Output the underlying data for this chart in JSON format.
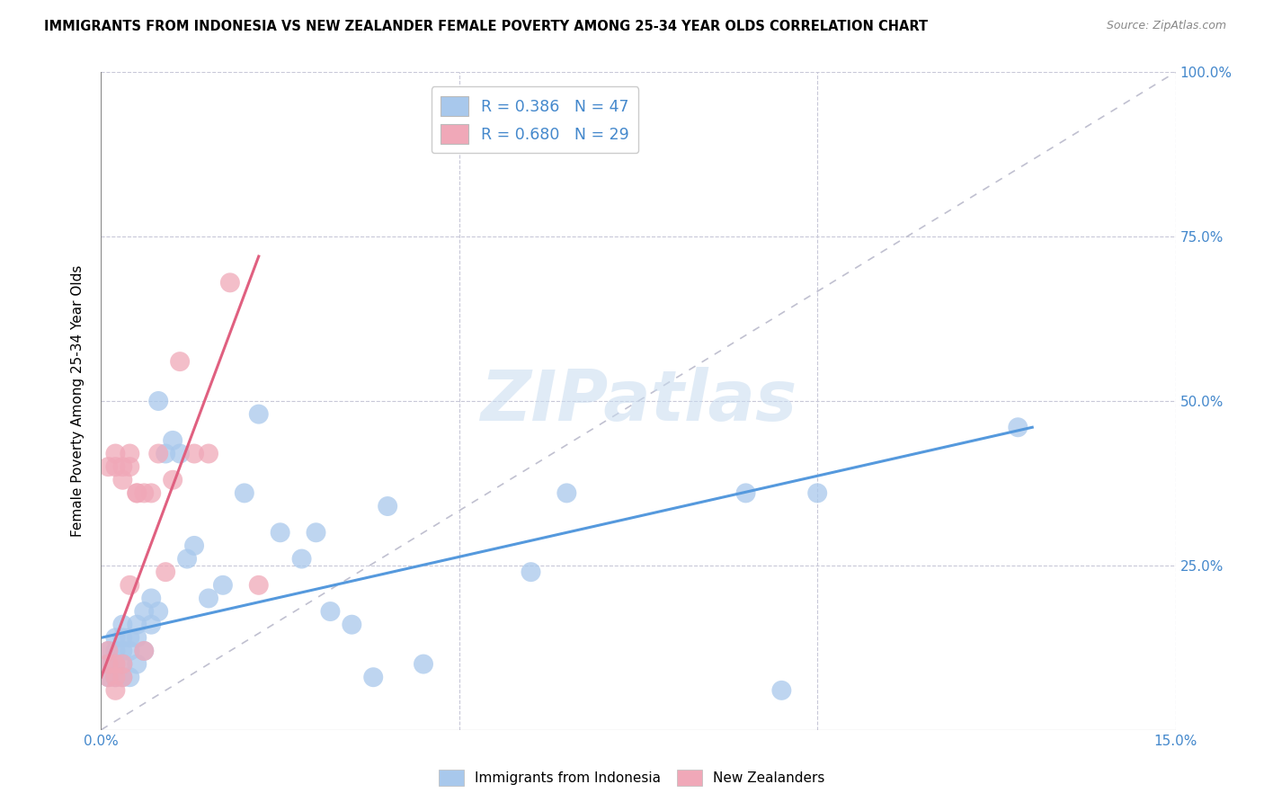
{
  "title": "IMMIGRANTS FROM INDONESIA VS NEW ZEALANDER FEMALE POVERTY AMONG 25-34 YEAR OLDS CORRELATION CHART",
  "source": "Source: ZipAtlas.com",
  "ylabel": "Female Poverty Among 25-34 Year Olds",
  "x_min": 0.0,
  "x_max": 0.15,
  "y_min": 0.0,
  "y_max": 1.0,
  "blue_color": "#A8C8EC",
  "pink_color": "#F0A8B8",
  "blue_line_color": "#5599DD",
  "pink_line_color": "#E06080",
  "diagonal_color": "#C0C0D0",
  "watermark_text": "ZIPatlas",
  "blue_scatter_x": [
    0.001,
    0.001,
    0.001,
    0.002,
    0.002,
    0.002,
    0.002,
    0.003,
    0.003,
    0.003,
    0.003,
    0.003,
    0.004,
    0.004,
    0.004,
    0.005,
    0.005,
    0.005,
    0.006,
    0.006,
    0.007,
    0.007,
    0.008,
    0.008,
    0.009,
    0.01,
    0.011,
    0.012,
    0.013,
    0.015,
    0.017,
    0.02,
    0.022,
    0.025,
    0.028,
    0.03,
    0.032,
    0.035,
    0.038,
    0.04,
    0.045,
    0.06,
    0.065,
    0.09,
    0.095,
    0.1,
    0.128
  ],
  "blue_scatter_y": [
    0.12,
    0.1,
    0.08,
    0.14,
    0.12,
    0.1,
    0.08,
    0.16,
    0.14,
    0.12,
    0.1,
    0.08,
    0.14,
    0.12,
    0.08,
    0.16,
    0.14,
    0.1,
    0.18,
    0.12,
    0.2,
    0.16,
    0.5,
    0.18,
    0.42,
    0.44,
    0.42,
    0.26,
    0.28,
    0.2,
    0.22,
    0.36,
    0.48,
    0.3,
    0.26,
    0.3,
    0.18,
    0.16,
    0.08,
    0.34,
    0.1,
    0.24,
    0.36,
    0.36,
    0.06,
    0.36,
    0.46
  ],
  "pink_scatter_x": [
    0.001,
    0.001,
    0.001,
    0.001,
    0.002,
    0.002,
    0.002,
    0.002,
    0.002,
    0.003,
    0.003,
    0.003,
    0.003,
    0.004,
    0.004,
    0.004,
    0.005,
    0.005,
    0.006,
    0.006,
    0.007,
    0.008,
    0.009,
    0.01,
    0.011,
    0.013,
    0.015,
    0.018,
    0.022
  ],
  "pink_scatter_y": [
    0.08,
    0.1,
    0.12,
    0.4,
    0.1,
    0.4,
    0.42,
    0.06,
    0.08,
    0.4,
    0.38,
    0.1,
    0.08,
    0.42,
    0.4,
    0.22,
    0.36,
    0.36,
    0.36,
    0.12,
    0.36,
    0.42,
    0.24,
    0.38,
    0.56,
    0.42,
    0.42,
    0.68,
    0.22
  ],
  "blue_line_x": [
    0.0,
    0.13
  ],
  "blue_line_y": [
    0.14,
    0.46
  ],
  "pink_line_x": [
    0.0,
    0.022
  ],
  "pink_line_y": [
    0.08,
    0.72
  ]
}
